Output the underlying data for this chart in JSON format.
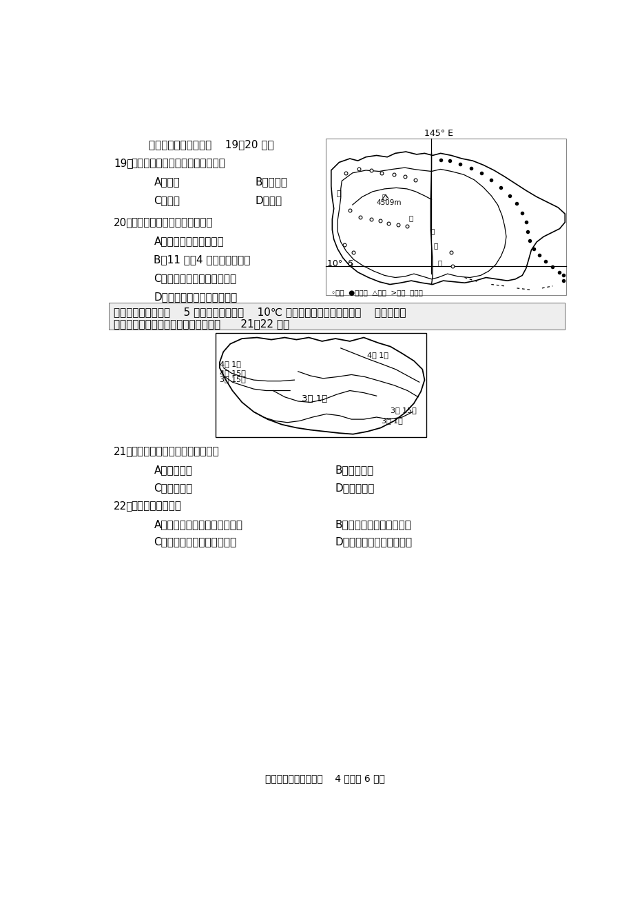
{
  "bg_color": "#ffffff",
  "page_width": 9.2,
  "page_height": 13.01,
  "dpi": 100,
  "intro_line": "读某岛屿局部图，完成    19～20 题。",
  "q19_num": "19．",
  "q19_stem": "图中黑点表示的地理事物最可能为",
  "q19_A": "A．石油",
  "q19_B": "B．红树林",
  "q19_C": "C．台风",
  "q19_D": "D．火山",
  "q20_num": "20．",
  "q20_stem": "有关该区域的推断，正确的是",
  "q20_A": "A．终年受东南信风控制",
  "q20_B": "B．11 月～4 月盛行西北季风",
  "q20_C": "C．城市密集，交通线呼网状",
  "q20_D": "D．河流短促，航运价値较高",
  "map1_legend": "◦城市  ●某事物  △公路  >河流  泠境界",
  "intro2_line1": "气象学上通常把连续    5 天日平均气温超过    10℃ 的第一天视为春季的开始，    读我国部分",
  "intro2_line2": "区域平均入春时间等値线分布图，完成      21～22 题。",
  "q21_num": "21．",
  "q21_stem": "下列地区中，入春时间最早的是",
  "q21_A": "A．四川盆地",
  "q21_B": "B．江汉平原",
  "q21_C": "C．两广丘陵",
  "q21_D": "D．黄土高原",
  "q22_num": "22．",
  "q22_stem": "下列叙述正确的是",
  "q22_A": "A．山东半岛入春晚于四川盆地",
  "q22_B": "B．纬度越高入春时间越晚",
  "q22_C": "C．离海洋越近入春时间越早",
  "q22_D": "D．地势越高入春时间越早",
  "footer": "十校高三地理试题卷第    4 页（共 6 页）",
  "map1_label_145E": "145° E",
  "map1_label_10S": "10°  S",
  "map1_label_ba": "巴",
  "map1_label_bu": "布",
  "map1_label_4509m": "4509m",
  "map1_label_xin": "新",
  "map1_label_ji": "几",
  "map1_label_nei": "内",
  "map1_label_ya": "亚"
}
